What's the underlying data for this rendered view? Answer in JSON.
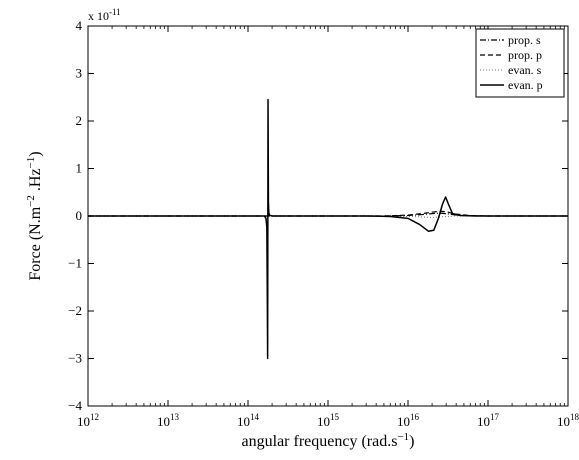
{
  "chart_data": {
    "type": "line",
    "x_scale": "log",
    "xlim": [
      1000000000000.0,
      1e+18
    ],
    "ylim": [
      -4,
      4
    ],
    "y_multiplier_text": "x 10",
    "y_multiplier_exp": "-11",
    "xlabel": "angular frequency (rad.s",
    "xlabel_sup": "−1",
    "xlabel_end": ")",
    "ylabel_a": "Force (N.m",
    "ylabel_sup1": "−2",
    "ylabel_b": " .Hz",
    "ylabel_sup2": "−1",
    "ylabel_c": ")",
    "x_ticks": [
      {
        "value": 1000000000000.0,
        "base": "10",
        "exp": "12"
      },
      {
        "value": 10000000000000.0,
        "base": "10",
        "exp": "13"
      },
      {
        "value": 100000000000000.0,
        "base": "10",
        "exp": "14"
      },
      {
        "value": 1000000000000000.0,
        "base": "10",
        "exp": "15"
      },
      {
        "value": 1e+16,
        "base": "10",
        "exp": "16"
      },
      {
        "value": 1e+17,
        "base": "10",
        "exp": "17"
      },
      {
        "value": 1e+18,
        "base": "10",
        "exp": "18"
      }
    ],
    "y_ticks": [
      {
        "value": -4,
        "label": "−4"
      },
      {
        "value": -3,
        "label": "−3"
      },
      {
        "value": -2,
        "label": "−2"
      },
      {
        "value": -1,
        "label": "−1"
      },
      {
        "value": 0,
        "label": "0"
      },
      {
        "value": 1,
        "label": "1"
      },
      {
        "value": 2,
        "label": "2"
      },
      {
        "value": 3,
        "label": "3"
      },
      {
        "value": 4,
        "label": "4"
      }
    ],
    "legend_position": "top-right",
    "grid": false,
    "series": [
      {
        "name": "prop. s",
        "style": "dashdot",
        "x": [
          1000000000000.0,
          1000000000000000.0,
          5000000000000000.0,
          1e+16,
          1.5e+16,
          2e+16,
          2.5e+16,
          3e+16,
          4e+16,
          6e+16,
          1e+17,
          1e+18
        ],
        "y": [
          0,
          0,
          0,
          0.01,
          0.03,
          0.05,
          0.06,
          0.05,
          0.02,
          0.005,
          0,
          0
        ]
      },
      {
        "name": "prop. p",
        "style": "dashed",
        "x": [
          1000000000000.0,
          1000000000000000.0,
          5000000000000000.0,
          1e+16,
          1.5e+16,
          2e+16,
          2.5e+16,
          3e+16,
          4e+16,
          6e+16,
          1e+17,
          1e+18
        ],
        "y": [
          0,
          0,
          0,
          0.02,
          0.05,
          0.08,
          0.1,
          0.09,
          0.04,
          0.01,
          0,
          0
        ]
      },
      {
        "name": "evan. s",
        "style": "dotted",
        "x": [
          1000000000000.0,
          1000000000000000.0,
          5000000000000000.0,
          1e+16,
          1.5e+16,
          2e+16,
          2.5e+16,
          3e+16,
          4e+16,
          6e+16,
          1e+17,
          1e+18
        ],
        "y": [
          0,
          0,
          0,
          -0.01,
          -0.02,
          -0.03,
          -0.02,
          -0.01,
          0,
          0,
          0,
          0
        ]
      },
      {
        "name": "evan. p",
        "style": "solid",
        "x": [
          1000000000000.0,
          160000000000000.0,
          168000000000000.0,
          172000000000000.0,
          174000000000000.0,
          176000000000000.0,
          178000000000000.0,
          180000000000000.0,
          182000000000000.0,
          185000000000000.0,
          200000000000000.0,
          500000000000000.0,
          1000000000000000.0,
          3000000000000000.0,
          6000000000000000.0,
          1e+16,
          1.4e+16,
          1.8e+16,
          2.1e+16,
          2.4e+16,
          2.7e+16,
          2.95e+16,
          3.2e+16,
          3.6e+16,
          4.5e+16,
          7e+16,
          1e+17,
          1e+18
        ],
        "y": [
          0,
          0,
          -0.05,
          -0.25,
          -1.5,
          -3.0,
          2.45,
          0.3,
          0.08,
          0.02,
          0,
          0,
          0,
          0,
          -0.01,
          -0.05,
          -0.18,
          -0.32,
          -0.3,
          -0.05,
          0.25,
          0.4,
          0.25,
          0.05,
          0.01,
          0,
          0,
          0
        ]
      }
    ]
  }
}
